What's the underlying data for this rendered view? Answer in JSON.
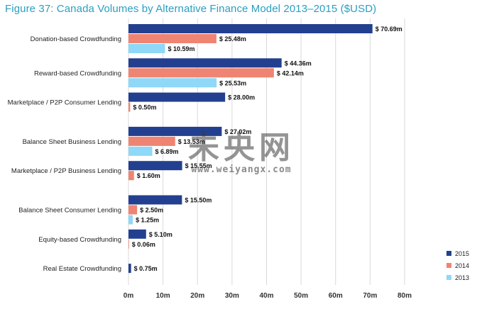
{
  "figure": {
    "title": "Figure 37: Canada Volumes by Alternative Finance Model 2013–2015 ($USD)"
  },
  "watermark": {
    "text": "未央网",
    "url": "www.weiyangx.com"
  },
  "chart_data": {
    "type": "bar",
    "orientation": "horizontal",
    "title": "Figure 37: Canada Volumes by Alternative Finance Model 2013–2015 ($USD)",
    "xlabel": "",
    "ylabel": "",
    "xlim": [
      0,
      80
    ],
    "x_ticks": [
      0,
      10,
      20,
      30,
      40,
      50,
      60,
      70,
      80
    ],
    "x_tick_labels": [
      "0m",
      "10m",
      "20m",
      "30m",
      "40m",
      "50m",
      "60m",
      "70m",
      "80m"
    ],
    "value_label_prefix": "$ ",
    "value_label_suffix": "m",
    "grid": true,
    "legend_position": "bottom-right",
    "categories": [
      "Donation-based Crowdfunding",
      "Reward-based Crowdfunding",
      "Marketplace / P2P Consumer Lending",
      "Balance Sheet Business Lending",
      "Marketplace / P2P Business Lending",
      "Balance Sheet Consumer Lending",
      "Equity-based Crowdfunding",
      "Real Estate Crowdfunding"
    ],
    "series": [
      {
        "name": "2015",
        "color": "#233f8f",
        "values": [
          70.69,
          44.36,
          28.0,
          27.02,
          15.55,
          15.5,
          5.1,
          0.75
        ]
      },
      {
        "name": "2014",
        "color": "#ef8472",
        "values": [
          25.48,
          42.14,
          0.5,
          13.53,
          1.6,
          2.5,
          0.06,
          null
        ]
      },
      {
        "name": "2013",
        "color": "#8fd8f7",
        "values": [
          10.59,
          25.53,
          null,
          6.89,
          null,
          1.25,
          null,
          null
        ]
      }
    ]
  }
}
